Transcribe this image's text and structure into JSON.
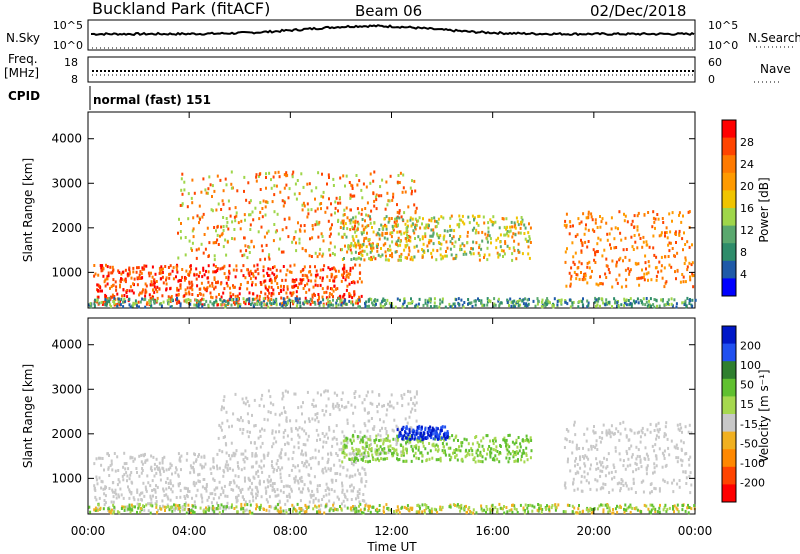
{
  "header": {
    "station": "Buckland Park (fitACF)",
    "beam": "Beam 06",
    "date": "02/Dec/2018"
  },
  "strip": {
    "nsky_label": "N.Sky",
    "nsky_ticks": [
      "10^5",
      "10^0"
    ],
    "nsearch_label": "N.Search",
    "nsearch_ticks": [
      "10^5",
      "10^0"
    ],
    "freq_label": "Freq.",
    "freq_unit": "[MHz]",
    "freq_ticks": [
      "18",
      "8"
    ],
    "nave_label": "Nave",
    "nave_ticks": [
      "60",
      "0"
    ],
    "cpid_label": "CPID",
    "cpid_text": "normal (fast) 151"
  },
  "chart_data": [
    {
      "type": "heatmap",
      "name": "power",
      "ylabel": "Slant Range [km]",
      "yticks": [
        "4000",
        "3000",
        "2000",
        "1000"
      ],
      "ytick_values": [
        4000,
        3000,
        2000,
        1000
      ],
      "ylim": [
        200,
        4600
      ],
      "xlim": [
        0,
        24
      ],
      "colorbar_label": "Power [dB]",
      "colorbar_ticks": [
        "28",
        "24",
        "20",
        "16",
        "12",
        "8",
        "4"
      ],
      "colorbar_colors": [
        "#ff0000",
        "#ff4400",
        "#ff7a00",
        "#ff9a00",
        "#f0c400",
        "#9fd64a",
        "#5aa86e",
        "#2e8c6a",
        "#1f5aa8",
        "#0000ff"
      ]
    },
    {
      "type": "heatmap",
      "name": "velocity",
      "ylabel": "Slant Range [km]",
      "yticks": [
        "4000",
        "3000",
        "2000",
        "1000"
      ],
      "ytick_values": [
        4000,
        3000,
        2000,
        1000
      ],
      "ylim": [
        200,
        4600
      ],
      "xlim": [
        0,
        24
      ],
      "xlabel": "Time UT",
      "xticks": [
        "00:00",
        "04:00",
        "08:00",
        "12:00",
        "16:00",
        "20:00",
        "00:00"
      ],
      "colorbar_label": "Velocity [m s⁻¹]",
      "colorbar_ticks": [
        "200",
        "100",
        "50",
        "15",
        "-15",
        "-50",
        "-100",
        "-200"
      ],
      "colorbar_colors": [
        "#0018c8",
        "#2050f0",
        "#2f7f2f",
        "#60c030",
        "#a6d84f",
        "#c8c8c8",
        "#f0b020",
        "#ff8800",
        "#ff4400",
        "#ff0000"
      ]
    }
  ]
}
